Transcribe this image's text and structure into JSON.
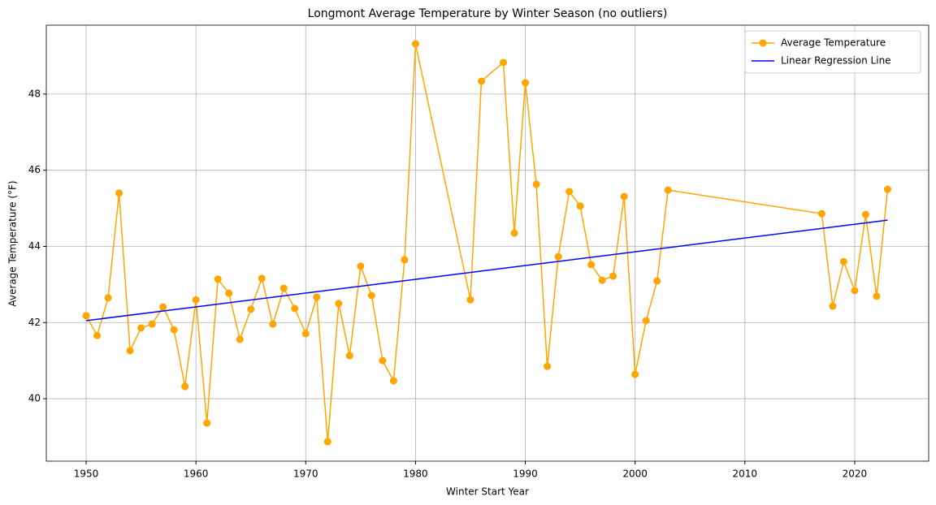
{
  "chart_data": {
    "type": "line",
    "title": "Longmont Average Temperature by Winter Season (no outliers)",
    "xlabel": "Winter Start Year",
    "ylabel": "Average Temperature (°F)",
    "xlim": [
      1946.37,
      2026.74
    ],
    "ylim": [
      38.36,
      49.81
    ],
    "xticks": [
      1950,
      1960,
      1970,
      1980,
      1990,
      2000,
      2010,
      2020
    ],
    "yticks": [
      40,
      42,
      44,
      46,
      48
    ],
    "grid": true,
    "legend": "upper right",
    "series": [
      {
        "name": "Average Temperature",
        "color": "#ffa500",
        "marker": true,
        "x": [
          1950,
          1951,
          1952,
          1953,
          1954,
          1955,
          1956,
          1957,
          1958,
          1959,
          1960,
          1961,
          1962,
          1963,
          1964,
          1965,
          1966,
          1967,
          1968,
          1969,
          1970,
          1971,
          1972,
          1973,
          1974,
          1975,
          1976,
          1977,
          1978,
          1979,
          1980,
          1985,
          1986,
          1988,
          1989,
          1990,
          1991,
          1992,
          1993,
          1994,
          1995,
          1996,
          1997,
          1998,
          1999,
          2000,
          2001,
          2002,
          2003,
          2017,
          2018,
          2019,
          2020,
          2021,
          2022,
          2023
        ],
        "values": [
          42.18,
          41.66,
          42.65,
          45.4,
          41.26,
          41.86,
          41.96,
          42.41,
          41.81,
          40.32,
          42.6,
          39.36,
          43.14,
          42.77,
          41.56,
          42.35,
          43.16,
          41.96,
          42.9,
          42.37,
          41.71,
          42.67,
          38.87,
          42.5,
          41.13,
          43.48,
          42.71,
          41.0,
          40.47,
          43.65,
          49.32,
          42.6,
          48.34,
          48.83,
          44.35,
          48.3,
          45.63,
          40.85,
          43.73,
          45.44,
          45.06,
          43.52,
          43.11,
          43.22,
          45.31,
          40.64,
          42.05,
          43.09,
          45.48,
          44.86,
          42.43,
          43.6,
          42.84,
          44.84,
          42.69,
          45.5
        ]
      },
      {
        "name": "Linear Regression Line",
        "color": "#0000ff",
        "marker": false,
        "x": [
          1950,
          2023
        ],
        "values": [
          42.05,
          44.69
        ]
      }
    ]
  }
}
